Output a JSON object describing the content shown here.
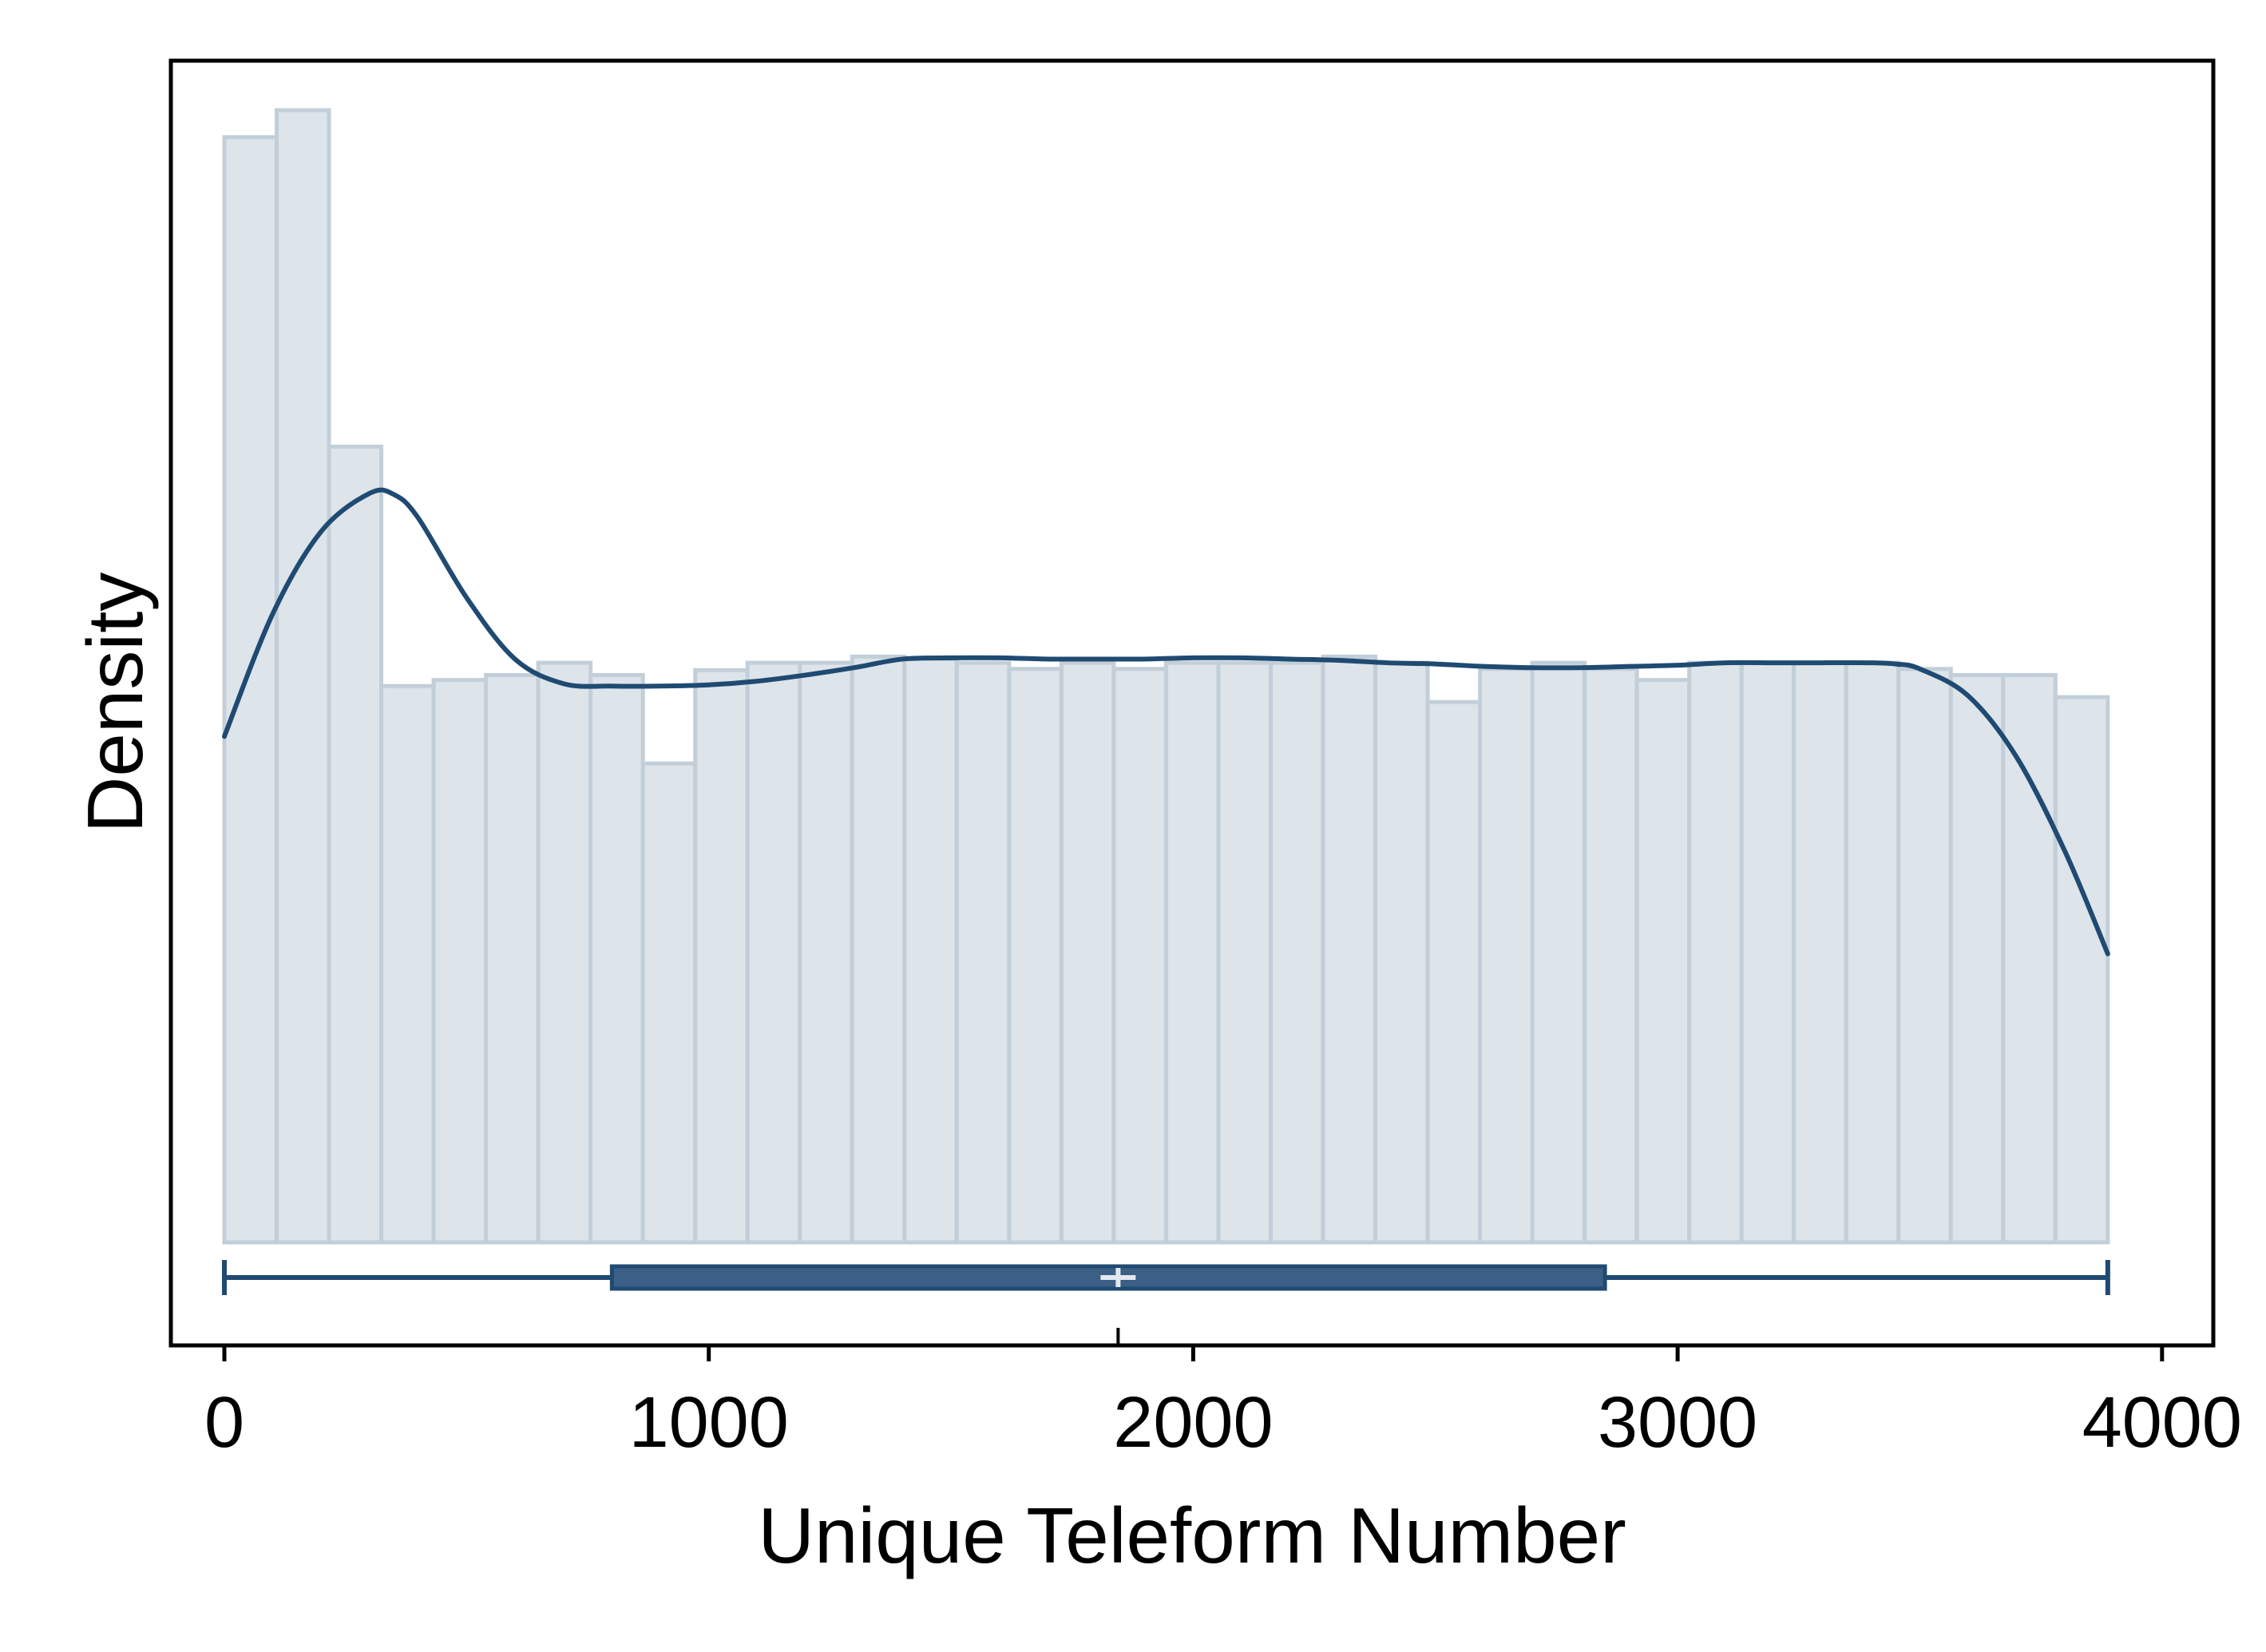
{
  "colors": {
    "bar_fill": "#dde4ea",
    "bar_stroke": "#c2cfd9",
    "kde_line": "#1f4a72",
    "box_fill": "#3c5f85",
    "box_stroke": "#1f4a72",
    "axis": "#000000",
    "median_mark": "#e3e8ee"
  },
  "chart_data": {
    "type": "bar",
    "title": "",
    "xlabel": "Unique Teleform Number",
    "ylabel": "Density",
    "xlim": [
      -100,
      4100
    ],
    "ylim": [
      0,
      1.0
    ],
    "xticks": [
      0,
      1000,
      2000,
      3000,
      4000
    ],
    "x_tick_labels": [
      "0",
      "1000",
      "2000",
      "3000",
      "4000"
    ],
    "y_tick_labels_shown": false,
    "grid": false,
    "legend": "none",
    "histogram": {
      "bin_edges": [
        0,
        108,
        216,
        324,
        432,
        540,
        648,
        756,
        864,
        972,
        1080,
        1188,
        1296,
        1404,
        1512,
        1620,
        1728,
        1836,
        1944,
        2052,
        2160,
        2268,
        2376,
        2484,
        2592,
        2700,
        2808,
        2916,
        3024,
        3132,
        3240,
        3348,
        3456,
        3564,
        3672,
        3780,
        3888
      ],
      "values": [
        0.9,
        0.922,
        0.648,
        0.453,
        0.458,
        0.462,
        0.472,
        0.462,
        0.39,
        0.466,
        0.472,
        0.472,
        0.477,
        0.475,
        0.472,
        0.467,
        0.472,
        0.467,
        0.472,
        0.472,
        0.472,
        0.477,
        0.472,
        0.44,
        0.467,
        0.472,
        0.467,
        0.458,
        0.472,
        0.472,
        0.472,
        0.472,
        0.467,
        0.462,
        0.462,
        0.444
      ]
    },
    "kde": {
      "x": [
        0,
        100,
        200,
        300,
        350,
        400,
        500,
        600,
        700,
        800,
        900,
        1000,
        1100,
        1200,
        1300,
        1400,
        1500,
        1600,
        1700,
        1800,
        1900,
        2000,
        2100,
        2200,
        2300,
        2400,
        2500,
        2600,
        2700,
        2800,
        2900,
        3000,
        3100,
        3200,
        3300,
        3400,
        3450,
        3500,
        3600,
        3700,
        3800,
        3888
      ],
      "y": [
        0.412,
        0.512,
        0.579,
        0.61,
        0.609,
        0.59,
        0.525,
        0.475,
        0.455,
        0.453,
        0.453,
        0.454,
        0.457,
        0.462,
        0.468,
        0.475,
        0.476,
        0.476,
        0.475,
        0.475,
        0.475,
        0.476,
        0.476,
        0.475,
        0.474,
        0.472,
        0.471,
        0.469,
        0.468,
        0.468,
        0.469,
        0.47,
        0.472,
        0.472,
        0.472,
        0.472,
        0.471,
        0.467,
        0.445,
        0.395,
        0.318,
        0.235
      ]
    },
    "boxplot": {
      "min": 0,
      "q1": 800,
      "median": 1845,
      "q3": 2850,
      "max": 3888,
      "mean": 1845
    }
  }
}
